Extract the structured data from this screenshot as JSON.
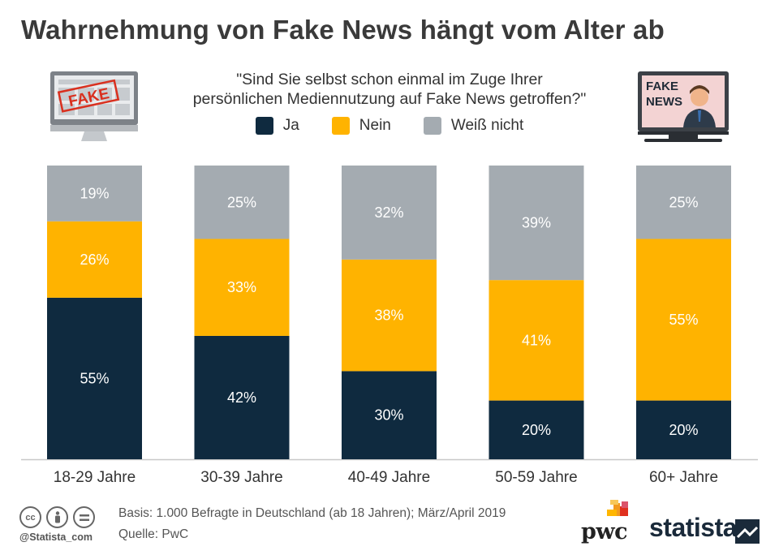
{
  "title": "Wahrnehmung von Fake News hängt vom Alter ab",
  "question": {
    "line1": "\"Sind Sie selbst schon einmal im Zuge Ihrer",
    "line2": "persönlichen Mediennutzung auf Fake News getroffen?\""
  },
  "icons": {
    "monitor": {
      "name": "monitor-fake-icon",
      "stamp": "FAKE"
    },
    "tv": {
      "name": "tv-fake-news-icon",
      "line1": "FAKE",
      "line2": "NEWS"
    }
  },
  "colors": {
    "ja": "#0f2a3f",
    "nein": "#ffb300",
    "weiss_nicht": "#a4abb1",
    "baseline": "#c8c8c8"
  },
  "chart_data": {
    "type": "bar",
    "stacked": true,
    "percent": true,
    "categories": [
      "18-29 Jahre",
      "30-39 Jahre",
      "40-49 Jahre",
      "50-59 Jahre",
      "60+ Jahre"
    ],
    "series": [
      {
        "name": "Ja",
        "values": [
          55,
          42,
          30,
          20,
          20
        ]
      },
      {
        "name": "Nein",
        "values": [
          26,
          33,
          38,
          41,
          55
        ]
      },
      {
        "name": "Weiß nicht",
        "values": [
          19,
          25,
          32,
          39,
          25
        ]
      }
    ],
    "ylim": [
      0,
      100
    ],
    "value_suffix": "%",
    "legend_position": "top-center",
    "grid": false
  },
  "legend": [
    "Ja",
    "Nein",
    "Weiß nicht"
  ],
  "footer": {
    "basis": "Basis: 1.000 Befragte in Deutschland (ab 18 Jahren); März/April 2019",
    "source": "Quelle: PwC",
    "handle": "@Statista_com",
    "cc_icons": [
      "cc-icon",
      "by-icon",
      "nd-icon"
    ]
  },
  "logos": {
    "pwc": "pwc",
    "statista": "statista"
  }
}
